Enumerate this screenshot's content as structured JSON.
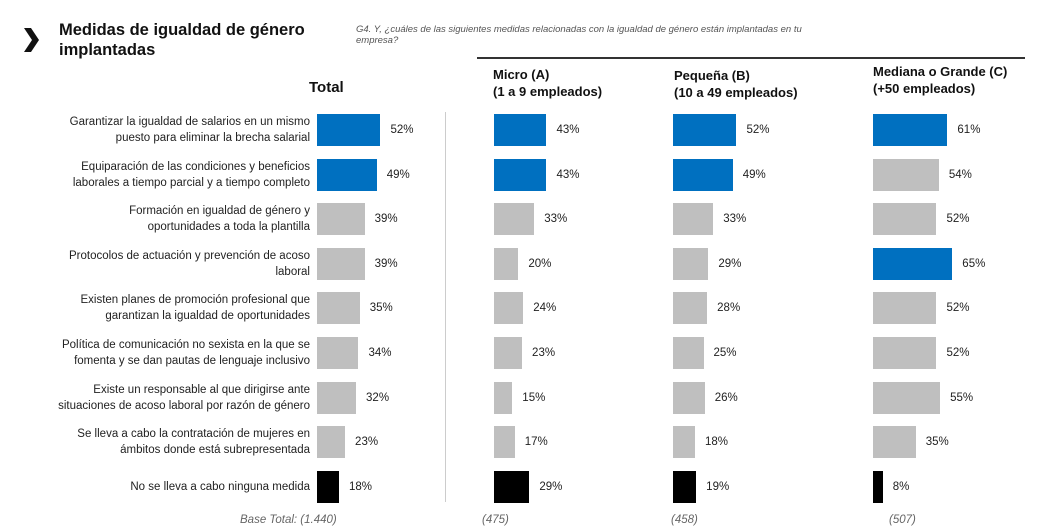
{
  "header": {
    "title_line1": "Medidas de igualdad de género",
    "title_line2": "implantadas",
    "question_line1": "G4. Y, ¿cuáles de las siguientes medidas relacionadas con la igualdad de género están implantadas en tu",
    "question_line2": "empresa?"
  },
  "columns": {
    "total": "Total",
    "micro_l1": "Micro (A)",
    "micro_l2": "(1 a 9 empleados)",
    "pequena_l1": "Pequeña (B)",
    "pequena_l2": "(10 a 49 empleados)",
    "mediana_l1": "Mediana o Grande (C)",
    "mediana_l2": "(+50 empleados)"
  },
  "bases": {
    "total": "Base Total: (1.440)",
    "micro": "(475)",
    "pequena": "(458)",
    "mediana": "(507)"
  },
  "colors": {
    "highlight": "#0070c0",
    "normal": "#bfbfbf",
    "none": "#000000"
  },
  "chart_data": {
    "type": "bar",
    "orientation": "horizontal",
    "title": "Medidas de igualdad de género implantadas",
    "unit": "%",
    "categories": [
      "Garantizar la igualdad de salarios en un mismo puesto para eliminar la brecha salarial",
      "Equiparación de las condiciones y beneficios laborales a tiempo parcial y a tiempo completo",
      "Formación en igualdad de género y oportunidades a toda la plantilla",
      "Protocolos de actuación y prevención de acoso laboral",
      "Existen planes de promoción profesional que garantizan la igualdad de oportunidades",
      "Política de comunicación no sexista en la que se fomenta y se dan pautas de lenguaje inclusivo",
      "Existe un responsable al que dirigirse ante situaciones de acoso laboral por razón de género",
      "Se lleva a cabo la contratación de mujeres en ámbitos donde está subrepresentada",
      "No se lleva a cabo ninguna medida"
    ],
    "category_lines": [
      [
        "Garantizar la igualdad de salarios en un mismo",
        "puesto para eliminar la brecha salarial"
      ],
      [
        "Equiparación de las condiciones y beneficios",
        "laborales a tiempo parcial y a tiempo completo"
      ],
      [
        "Formación en igualdad de género y",
        "oportunidades a toda la plantilla"
      ],
      [
        "Protocolos de actuación y prevención de acoso",
        "laboral"
      ],
      [
        "Existen planes de promoción profesional que",
        "garantizan la igualdad de oportunidades"
      ],
      [
        "Política de comunicación no sexista en la que se",
        "fomenta y se dan pautas de lenguaje inclusivo"
      ],
      [
        "Existe un responsable al que dirigirse ante",
        "situaciones de acoso laboral por razón de género"
      ],
      [
        "Se lleva a cabo la contratación de mujeres en",
        "ámbitos donde está subrepresentada"
      ],
      [
        "No se lleva a cabo ninguna medida"
      ]
    ],
    "series": [
      {
        "name": "Total",
        "values": [
          52,
          49,
          39,
          39,
          35,
          34,
          32,
          23,
          18
        ],
        "styles": [
          "highlight",
          "highlight",
          "normal",
          "normal",
          "normal",
          "normal",
          "normal",
          "normal",
          "none"
        ]
      },
      {
        "name": "Micro (A) (1 a 9 empleados)",
        "values": [
          43,
          43,
          33,
          20,
          24,
          23,
          15,
          17,
          29
        ],
        "styles": [
          "highlight",
          "highlight",
          "normal",
          "normal",
          "normal",
          "normal",
          "normal",
          "normal",
          "none"
        ]
      },
      {
        "name": "Pequeña (B) (10 a 49 empleados)",
        "values": [
          52,
          49,
          33,
          29,
          28,
          25,
          26,
          18,
          19
        ],
        "styles": [
          "highlight",
          "highlight",
          "normal",
          "normal",
          "normal",
          "normal",
          "normal",
          "normal",
          "none"
        ]
      },
      {
        "name": "Mediana o Grande (C) (+50 empleados)",
        "values": [
          61,
          54,
          52,
          65,
          52,
          52,
          55,
          35,
          8
        ],
        "styles": [
          "highlight",
          "normal",
          "normal",
          "highlight",
          "normal",
          "normal",
          "normal",
          "normal",
          "none"
        ]
      }
    ],
    "xlim": [
      0,
      100
    ],
    "grid": false,
    "legend": "none"
  }
}
